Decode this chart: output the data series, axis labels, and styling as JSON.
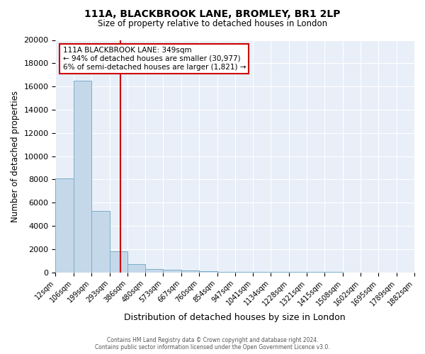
{
  "title": "111A, BLACKBROOK LANE, BROMLEY, BR1 2LP",
  "subtitle": "Size of property relative to detached houses in London",
  "xlabel": "Distribution of detached houses by size in London",
  "ylabel": "Number of detached properties",
  "bar_color": "#c5d8ea",
  "bar_edge_color": "#7aaec8",
  "fig_bg_color": "#ffffff",
  "ax_bg_color": "#e8eff8",
  "grid_color": "#ffffff",
  "bin_edges": [
    12,
    106,
    199,
    293,
    386,
    480,
    573,
    667,
    760,
    854,
    947,
    1041,
    1134,
    1228,
    1321,
    1415,
    1508,
    1602,
    1695,
    1789,
    1882
  ],
  "bar_heights": [
    8100,
    16500,
    5300,
    1800,
    700,
    300,
    220,
    150,
    100,
    70,
    55,
    40,
    35,
    25,
    20,
    15,
    10,
    8,
    5,
    3
  ],
  "property_size": 349,
  "red_line_color": "#cc0000",
  "ylim": [
    0,
    20000
  ],
  "yticks": [
    0,
    2000,
    4000,
    6000,
    8000,
    10000,
    12000,
    14000,
    16000,
    18000,
    20000
  ],
  "annotation_title": "111A BLACKBROOK LANE: 349sqm",
  "annotation_line1": "← 94% of detached houses are smaller (30,977)",
  "annotation_line2": "6% of semi-detached houses are larger (1,821) →",
  "annotation_box_color": "#ffffff",
  "annotation_border_color": "#cc0000",
  "footer_line1": "Contains HM Land Registry data © Crown copyright and database right 2024.",
  "footer_line2": "Contains public sector information licensed under the Open Government Licence v3.0."
}
